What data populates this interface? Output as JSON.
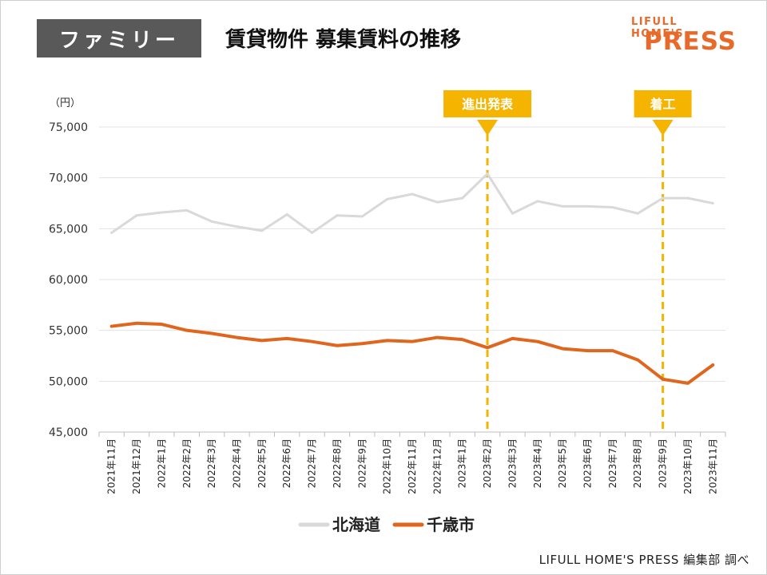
{
  "header": {
    "category": "ファミリー",
    "title": "賃貸物件 募集賃料の推移"
  },
  "logo": {
    "top": "LIFULL HOME'S",
    "bottom": "PRESS",
    "color": "#e8692a"
  },
  "footer": {
    "credit": "LIFULL HOME'S PRESS 編集部 調べ"
  },
  "chart_data": {
    "type": "line",
    "unit_label": "（円）",
    "ylim": [
      45000,
      75000
    ],
    "yticks": [
      45000,
      50000,
      55000,
      60000,
      65000,
      70000,
      75000
    ],
    "ytick_labels": [
      "45,000",
      "50,000",
      "55,000",
      "60,000",
      "65,000",
      "70,000",
      "75,000"
    ],
    "grid": true,
    "legend_position": "bottom",
    "categories": [
      "2021年11月",
      "2021年12月",
      "2022年1月",
      "2022年2月",
      "2022年3月",
      "2022年4月",
      "2022年5月",
      "2022年6月",
      "2022年7月",
      "2022年8月",
      "2022年9月",
      "2022年10月",
      "2022年11月",
      "2022年12月",
      "2023年1月",
      "2023年2月",
      "2023年3月",
      "2023年4月",
      "2023年5月",
      "2023年6月",
      "2023年7月",
      "2023年8月",
      "2023年9月",
      "2023年10月",
      "2023年11月"
    ],
    "series": [
      {
        "name": "北海道",
        "color": "#d9d9d9",
        "values": [
          64600,
          66300,
          66600,
          66800,
          65700,
          65200,
          64800,
          66400,
          64600,
          66300,
          66200,
          67900,
          68400,
          67600,
          68000,
          70400,
          66500,
          67700,
          67200,
          67200,
          67100,
          66500,
          68000,
          68000,
          67500
        ]
      },
      {
        "name": "千歳市",
        "color": "#e0661e",
        "values": [
          55400,
          55700,
          55600,
          55000,
          54700,
          54300,
          54000,
          54200,
          53900,
          53500,
          53700,
          54000,
          53900,
          54300,
          54100,
          53300,
          54200,
          53900,
          53200,
          53000,
          53000,
          52100,
          50200,
          49800,
          51600
        ]
      }
    ],
    "annotations": [
      {
        "label": "進出発表",
        "category": "2023年2月",
        "color": "#f5b400"
      },
      {
        "label": "着工",
        "category": "2023年9月",
        "color": "#f5b400"
      }
    ]
  }
}
